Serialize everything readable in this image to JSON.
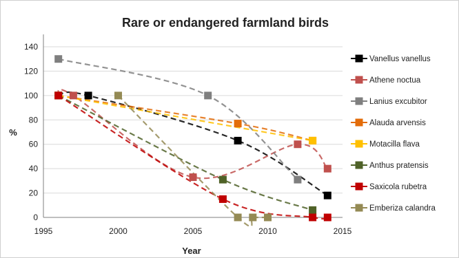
{
  "chart_data": {
    "type": "line",
    "title": "Rare or endangered farmland birds",
    "xlabel": "Year",
    "ylabel": "%",
    "xlim": [
      1995,
      2015
    ],
    "ylim": [
      0,
      140
    ],
    "x_ticks": [
      "1995",
      "2000",
      "2005",
      "2010",
      "2015"
    ],
    "y_ticks": [
      "0",
      "20",
      "40",
      "60",
      "80",
      "100",
      "120",
      "140"
    ],
    "legend_position": "right",
    "grid": "horizontal",
    "series": [
      {
        "name": "Vanellus vanellus",
        "color": "#000000",
        "trend": "dashed",
        "points": [
          [
            1996,
            100
          ],
          [
            1998,
            100
          ],
          [
            2008,
            63
          ],
          [
            2014,
            18
          ]
        ]
      },
      {
        "name": "Athene noctua",
        "color": "#c0504d",
        "trend": "dashed",
        "points": [
          [
            1996,
            100
          ],
          [
            1997,
            100
          ],
          [
            2005,
            33
          ],
          [
            2012,
            60
          ],
          [
            2014,
            40
          ]
        ]
      },
      {
        "name": "Lanius excubitor",
        "color": "#7f7f7f",
        "trend": "dashed",
        "points": [
          [
            1996,
            130
          ],
          [
            2006,
            100
          ],
          [
            2012,
            31
          ]
        ]
      },
      {
        "name": "Alauda arvensis",
        "color": "#e36c09",
        "trend": "dashed",
        "points": [
          [
            1996,
            100
          ],
          [
            2008,
            77
          ],
          [
            2013,
            63
          ]
        ]
      },
      {
        "name": "Motacilla flava",
        "color": "#ffc000",
        "trend": "dashed",
        "points": [
          [
            1996,
            100
          ],
          [
            2013,
            63
          ]
        ]
      },
      {
        "name": "Anthus pratensis",
        "color": "#4f6228",
        "trend": "dashed",
        "points": [
          [
            1996,
            100
          ],
          [
            2007,
            31
          ],
          [
            2013,
            6
          ]
        ]
      },
      {
        "name": "Saxicola rubetra",
        "color": "#c00000",
        "trend": "dashed",
        "points": [
          [
            1996,
            100
          ],
          [
            2007,
            15
          ],
          [
            2013,
            0
          ],
          [
            2014,
            0
          ]
        ]
      },
      {
        "name": "Emberiza calandra",
        "color": "#948a54",
        "trend": "dashed",
        "points": [
          [
            2000,
            100
          ],
          [
            2008,
            0
          ],
          [
            2009,
            0
          ],
          [
            2010,
            0
          ]
        ]
      }
    ]
  }
}
